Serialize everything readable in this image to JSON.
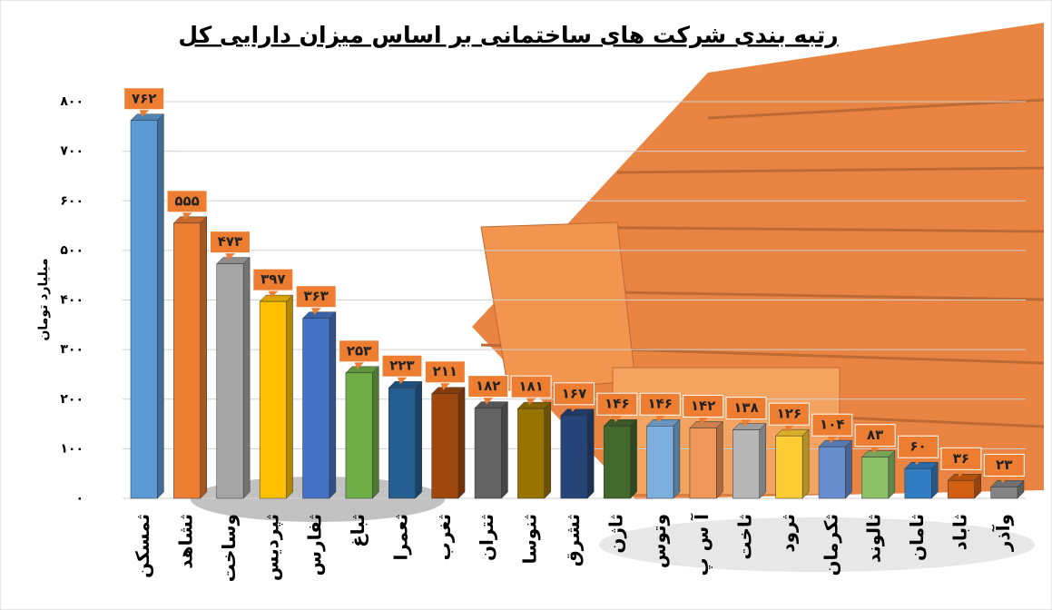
{
  "chart_data": {
    "type": "bar",
    "title": "رتبه بندی شرکت های ساختمانی بر اساس میزان دارایی کل",
    "y_label": "میلیارد تومان",
    "categories": [
      "ثمسکن",
      "ثشاهد",
      "وساخت",
      "ثپردیس",
      "ثفارس",
      "ثباغ",
      "ثعمرا",
      "ثغرب",
      "ثتران",
      "ثنوسا",
      "ثشرق",
      "ثاژن",
      "وتوس",
      "آ س پ",
      "ثاخت",
      "ثرود",
      "ثکرمان",
      "ثالوند",
      "ثامان",
      "ثاباد",
      "وآذر"
    ],
    "values": [
      762,
      555,
      473,
      397,
      363,
      253,
      223,
      211,
      182,
      181,
      167,
      146,
      146,
      142,
      138,
      126,
      104,
      83,
      60,
      36,
      23
    ],
    "value_labels": [
      "۷۶۲",
      "۵۵۵",
      "۴۷۳",
      "۳۹۷",
      "۳۶۳",
      "۲۵۳",
      "۲۲۳",
      "۲۱۱",
      "۱۸۲",
      "۱۸۱",
      "۱۶۷",
      "۱۴۶",
      "۱۴۶",
      "۱۴۲",
      "۱۳۸",
      "۱۲۶",
      "۱۰۴",
      "۸۳",
      "۶۰",
      "۳۶",
      "۲۳"
    ],
    "colors": [
      "#5b9bd5",
      "#ed7d31",
      "#a5a5a5",
      "#ffc000",
      "#4472c4",
      "#70ad47",
      "#255e91",
      "#9e480e",
      "#636363",
      "#997300",
      "#264478",
      "#43682b",
      "#7cafdd",
      "#f1975a",
      "#b7b7b7",
      "#ffcd33",
      "#698ed0",
      "#8cc168",
      "#327dc2",
      "#d26012",
      "#848484"
    ],
    "ylim": [
      0,
      800
    ],
    "yticks": [
      {
        "value": 0,
        "label": "۰"
      },
      {
        "value": 100,
        "label": "۱۰۰"
      },
      {
        "value": 200,
        "label": "۲۰۰"
      },
      {
        "value": 300,
        "label": "۳۰۰"
      },
      {
        "value": 400,
        "label": "۴۰۰"
      },
      {
        "value": 500,
        "label": "۵۰۰"
      },
      {
        "value": 600,
        "label": "۶۰۰"
      },
      {
        "value": 700,
        "label": "۷۰۰"
      },
      {
        "value": 800,
        "label": "۸۰۰"
      }
    ],
    "grid": true
  }
}
